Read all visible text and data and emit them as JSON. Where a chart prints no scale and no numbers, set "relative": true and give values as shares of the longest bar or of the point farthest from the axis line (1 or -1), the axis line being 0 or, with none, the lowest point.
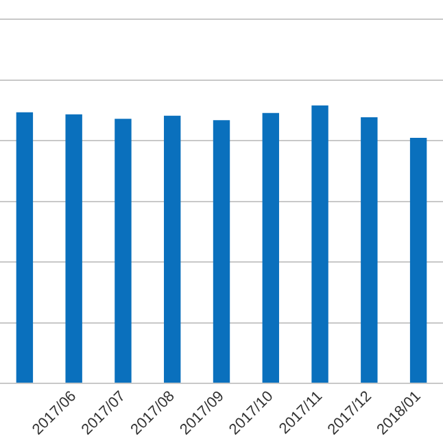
{
  "chart_data": {
    "type": "bar",
    "relative": true,
    "grid": "y",
    "categories": [
      null,
      "2017/06",
      "2017/07",
      "2017/08",
      "2017/09",
      "2017/10",
      "2017/11",
      "2017/12",
      "2018/01"
    ],
    "values": [
      0.975,
      0.968,
      0.952,
      0.963,
      0.947,
      0.973,
      1,
      0.957,
      0.883
    ],
    "color": "#0a70bd"
  }
}
